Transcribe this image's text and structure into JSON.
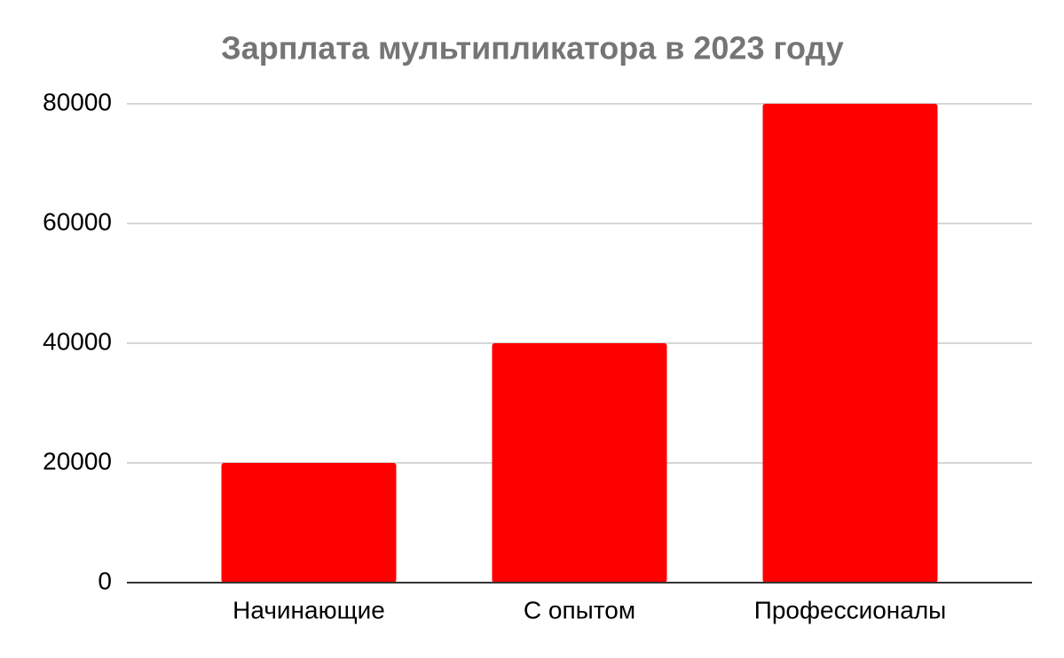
{
  "chart_data": {
    "type": "bar",
    "title": "Зарплата мультипликатора в 2023 году",
    "categories": [
      "Начинающие",
      "С опытом",
      "Профессионалы"
    ],
    "values": [
      20000,
      40000,
      80000
    ],
    "color": "#ff0000",
    "ylim": [
      0,
      80000
    ],
    "yticks": [
      0,
      20000,
      40000,
      60000,
      80000
    ],
    "grid": true
  }
}
